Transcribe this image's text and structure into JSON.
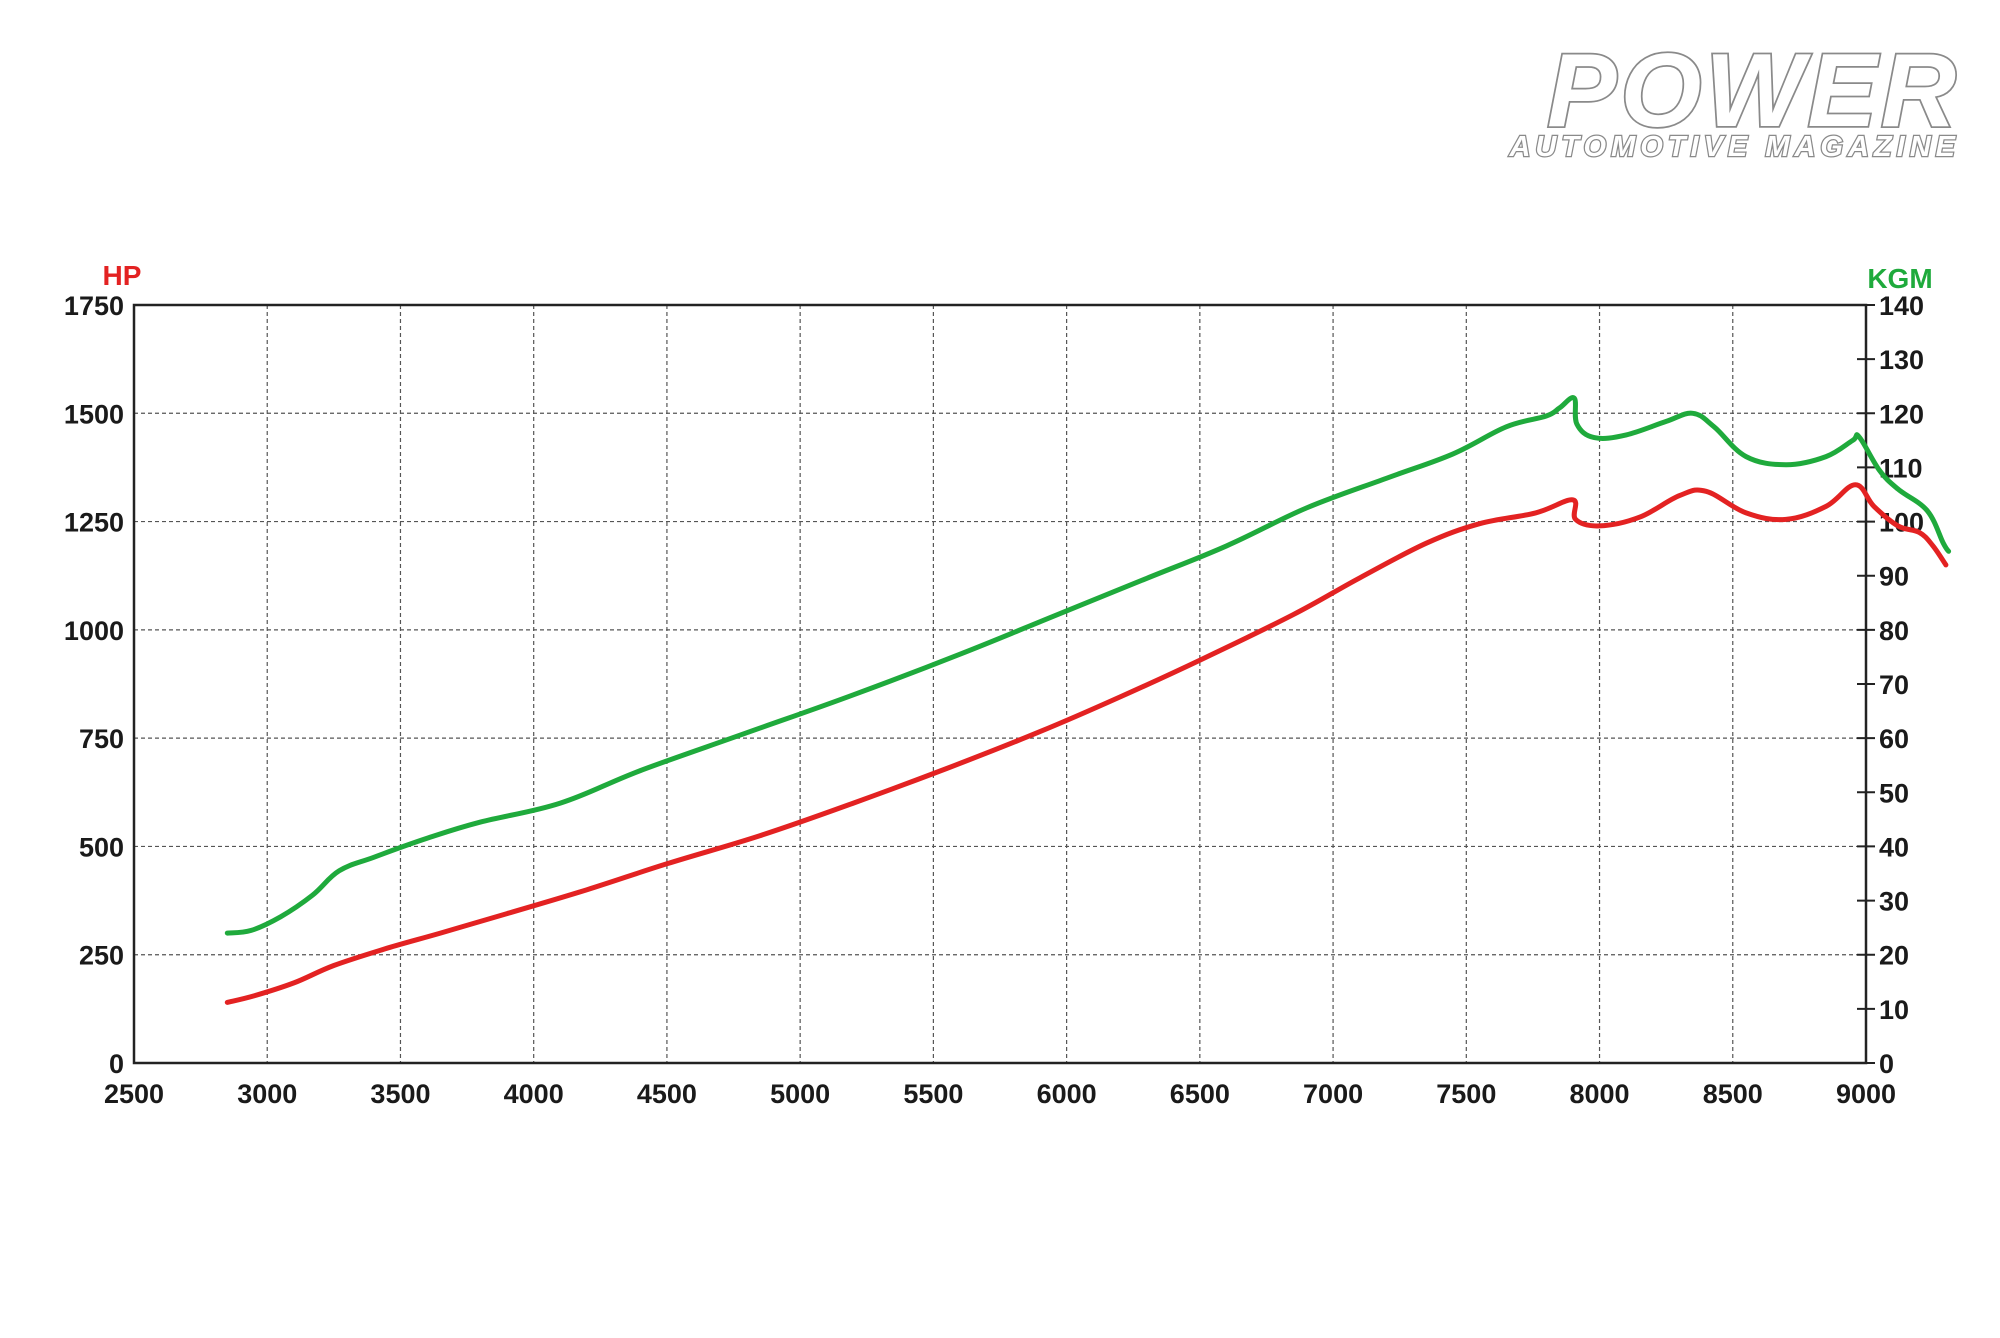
{
  "logo": {
    "main": "POWER",
    "sub": "AUTOMOTIVE MAGAZINE"
  },
  "chart_data": {
    "type": "line",
    "title": "",
    "xlabel": "",
    "ylabel": "HP",
    "y2label": "KGM",
    "xlim": [
      2500,
      9000
    ],
    "ylim": [
      0,
      1750
    ],
    "y2lim": [
      0,
      140
    ],
    "grid": true,
    "x_ticks": [
      2500,
      3000,
      3500,
      4000,
      4500,
      5000,
      5500,
      6000,
      6500,
      7000,
      7500,
      8000,
      8500,
      9000
    ],
    "y_ticks": [
      0,
      250,
      500,
      750,
      1000,
      1250,
      1500,
      1750
    ],
    "y2_ticks": [
      0,
      10,
      20,
      30,
      40,
      50,
      60,
      70,
      80,
      90,
      100,
      110,
      120,
      130,
      140
    ],
    "colors": {
      "hp": "#e32222",
      "kgm": "#1faa3c",
      "left_title": "#e32222",
      "right_title": "#1faa3c"
    },
    "series": [
      {
        "name": "HP",
        "axis": "left",
        "color": "#e32222",
        "points": [
          [
            2850,
            140
          ],
          [
            2950,
            155
          ],
          [
            3100,
            185
          ],
          [
            3250,
            225
          ],
          [
            3450,
            265
          ],
          [
            3650,
            300
          ],
          [
            3900,
            345
          ],
          [
            4200,
            400
          ],
          [
            4500,
            460
          ],
          [
            4850,
            525
          ],
          [
            5200,
            600
          ],
          [
            5550,
            680
          ],
          [
            5900,
            765
          ],
          [
            6200,
            845
          ],
          [
            6500,
            930
          ],
          [
            6850,
            1035
          ],
          [
            7100,
            1120
          ],
          [
            7350,
            1200
          ],
          [
            7550,
            1245
          ],
          [
            7760,
            1270
          ],
          [
            7900,
            1300
          ],
          [
            7910,
            1255
          ],
          [
            8000,
            1240
          ],
          [
            8150,
            1260
          ],
          [
            8300,
            1310
          ],
          [
            8400,
            1320
          ],
          [
            8550,
            1270
          ],
          [
            8700,
            1255
          ],
          [
            8850,
            1285
          ],
          [
            8960,
            1335
          ],
          [
            9030,
            1285
          ],
          [
            9120,
            1240
          ],
          [
            9200,
            1225
          ],
          [
            9250,
            1195
          ],
          [
            9300,
            1150
          ]
        ]
      },
      {
        "name": "KGM",
        "axis": "right",
        "color": "#1faa3c",
        "points": [
          [
            2850,
            24
          ],
          [
            2940,
            24.5
          ],
          [
            3050,
            27
          ],
          [
            3170,
            31
          ],
          [
            3270,
            35.5
          ],
          [
            3400,
            38
          ],
          [
            3600,
            41.5
          ],
          [
            3800,
            44.5
          ],
          [
            4100,
            48
          ],
          [
            4400,
            54
          ],
          [
            4800,
            61
          ],
          [
            5200,
            68
          ],
          [
            5600,
            75.5
          ],
          [
            5950,
            82.5
          ],
          [
            6300,
            89.5
          ],
          [
            6600,
            95.5
          ],
          [
            6900,
            102.5
          ],
          [
            7200,
            108
          ],
          [
            7450,
            112.5
          ],
          [
            7650,
            117.5
          ],
          [
            7800,
            119.5
          ],
          [
            7850,
            121
          ],
          [
            7905,
            122.8
          ],
          [
            7915,
            118
          ],
          [
            7980,
            115.5
          ],
          [
            8100,
            116
          ],
          [
            8250,
            118.5
          ],
          [
            8350,
            120
          ],
          [
            8430,
            117.5
          ],
          [
            8550,
            112
          ],
          [
            8700,
            110.5
          ],
          [
            8850,
            112
          ],
          [
            8950,
            115
          ],
          [
            8975,
            115.6
          ],
          [
            9050,
            109.5
          ],
          [
            9120,
            106
          ],
          [
            9230,
            102
          ],
          [
            9290,
            96
          ],
          [
            9310,
            94.5
          ]
        ]
      }
    ]
  }
}
